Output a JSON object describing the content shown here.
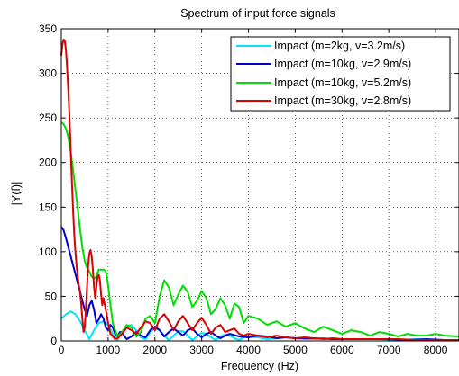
{
  "chart_data": {
    "type": "line",
    "title": "Spectrum of input force signals",
    "xlabel": "Frequency (Hz)",
    "ylabel": "|Y(f)|",
    "xlim": [
      0,
      8500
    ],
    "ylim": [
      0,
      350
    ],
    "xticks": [
      0,
      1000,
      2000,
      3000,
      4000,
      5000,
      6000,
      7000,
      8000
    ],
    "yticks": [
      0,
      50,
      100,
      150,
      200,
      250,
      300,
      350
    ],
    "grid": true,
    "legend_position": "top-right",
    "series": [
      {
        "name": "Impact (m=2kg, v=3.2m/s)",
        "color": "#00e5ff",
        "x": [
          0,
          100,
          200,
          300,
          400,
          500,
          600,
          700,
          800,
          900,
          1000,
          1100,
          1200,
          1300,
          1400,
          1500,
          1600,
          1700,
          1800,
          1900,
          2000,
          2100,
          2200,
          2300,
          2400,
          2500,
          2600,
          2700,
          2800,
          2900,
          3000,
          3100,
          3200,
          3300,
          3400,
          3500,
          3600,
          3700,
          3800,
          3900,
          4000,
          4200,
          4400,
          4600,
          4800,
          5000,
          5200,
          5400,
          5600,
          5800,
          6000,
          6400,
          6800,
          7200,
          7600,
          8000,
          8500
        ],
        "y": [
          25,
          30,
          33,
          30,
          22,
          12,
          2,
          12,
          20,
          22,
          18,
          8,
          1,
          10,
          17,
          18,
          12,
          4,
          2,
          10,
          14,
          12,
          6,
          1,
          6,
          11,
          11,
          6,
          1,
          5,
          9,
          8,
          4,
          1,
          5,
          7,
          6,
          3,
          1,
          4,
          5,
          4,
          2,
          3,
          4,
          3,
          2,
          2,
          3,
          2,
          2,
          2,
          2,
          1,
          2,
          1,
          1
        ]
      },
      {
        "name": "Impact (m=10kg, v=2.9m/s)",
        "color": "#0000cc",
        "x": [
          0,
          50,
          100,
          150,
          200,
          250,
          300,
          350,
          400,
          450,
          500,
          550,
          600,
          650,
          700,
          750,
          800,
          850,
          900,
          950,
          1000,
          1050,
          1100,
          1150,
          1200,
          1250,
          1300,
          1350,
          1400,
          1500,
          1600,
          1700,
          1800,
          1900,
          2000,
          2100,
          2200,
          2300,
          2400,
          2500,
          2600,
          2700,
          2800,
          2900,
          3000,
          3100,
          3200,
          3300,
          3400,
          3500,
          3600,
          3800,
          4000,
          4200,
          4400,
          4600,
          4800,
          5000,
          5400,
          5800,
          6200,
          6600,
          7000,
          7400,
          7800,
          8200,
          8500
        ],
        "y": [
          128,
          124,
          115,
          105,
          95,
          85,
          75,
          65,
          55,
          45,
          35,
          28,
          40,
          45,
          35,
          20,
          24,
          30,
          25,
          15,
          12,
          18,
          15,
          8,
          5,
          10,
          10,
          5,
          2,
          5,
          10,
          6,
          4,
          12,
          16,
          12,
          5,
          10,
          14,
          10,
          6,
          12,
          14,
          8,
          4,
          8,
          10,
          6,
          3,
          6,
          8,
          5,
          4,
          6,
          5,
          3,
          4,
          3,
          3,
          2,
          2,
          2,
          2,
          1,
          2,
          1,
          1
        ]
      },
      {
        "name": "Impact (m=10kg, v=5.2m/s)",
        "color": "#00dd00",
        "x": [
          0,
          50,
          100,
          150,
          200,
          250,
          300,
          350,
          400,
          450,
          500,
          550,
          600,
          650,
          700,
          750,
          800,
          850,
          900,
          950,
          1000,
          1050,
          1100,
          1150,
          1200,
          1300,
          1400,
          1500,
          1600,
          1700,
          1800,
          1900,
          2000,
          2100,
          2200,
          2300,
          2400,
          2500,
          2600,
          2700,
          2800,
          2900,
          3000,
          3100,
          3200,
          3300,
          3400,
          3500,
          3600,
          3700,
          3800,
          3900,
          4000,
          4200,
          4400,
          4600,
          4800,
          5000,
          5200,
          5400,
          5600,
          5800,
          6000,
          6200,
          6400,
          6600,
          6800,
          7000,
          7200,
          7400,
          7600,
          7800,
          8000,
          8200,
          8500
        ],
        "y": [
          245,
          243,
          238,
          228,
          212,
          192,
          170,
          148,
          125,
          105,
          90,
          82,
          78,
          72,
          70,
          72,
          80,
          80,
          80,
          78,
          62,
          40,
          20,
          12,
          5,
          10,
          18,
          15,
          5,
          10,
          25,
          28,
          20,
          50,
          68,
          60,
          40,
          52,
          62,
          55,
          38,
          45,
          56,
          48,
          30,
          36,
          48,
          40,
          25,
          42,
          38,
          20,
          28,
          25,
          18,
          22,
          16,
          20,
          14,
          10,
          16,
          12,
          8,
          12,
          10,
          6,
          10,
          8,
          5,
          8,
          6,
          6,
          8,
          6,
          5
        ]
      },
      {
        "name": "Impact (m=30kg, v=2.8m/s)",
        "color": "#dd0000",
        "x": [
          0,
          25,
          50,
          75,
          100,
          125,
          150,
          175,
          200,
          225,
          250,
          275,
          300,
          325,
          350,
          375,
          400,
          425,
          450,
          475,
          500,
          525,
          550,
          575,
          600,
          625,
          650,
          675,
          700,
          725,
          750,
          775,
          800,
          825,
          850,
          875,
          900,
          950,
          1000,
          1050,
          1100,
          1150,
          1200,
          1300,
          1400,
          1500,
          1600,
          1700,
          1800,
          1900,
          2000,
          2100,
          2200,
          2300,
          2400,
          2500,
          2600,
          2700,
          2800,
          2900,
          3000,
          3100,
          3200,
          3300,
          3400,
          3500,
          3600,
          3700,
          3800,
          3900,
          4000,
          4200,
          4400,
          4600,
          4800,
          5000,
          5200,
          5400,
          5600,
          5800,
          6000,
          6400,
          6800,
          7200,
          7600,
          8000,
          8500
        ],
        "y": [
          320,
          333,
          338,
          336,
          325,
          305,
          280,
          250,
          215,
          180,
          148,
          120,
          100,
          85,
          72,
          62,
          55,
          42,
          25,
          10,
          15,
          35,
          60,
          85,
          98,
          102,
          95,
          80,
          60,
          48,
          60,
          72,
          74,
          68,
          52,
          40,
          48,
          35,
          20,
          8,
          5,
          2,
          3,
          8,
          15,
          12,
          8,
          15,
          22,
          20,
          12,
          25,
          30,
          22,
          12,
          22,
          28,
          20,
          12,
          20,
          26,
          18,
          8,
          15,
          18,
          10,
          12,
          14,
          8,
          6,
          8,
          6,
          4,
          6,
          4,
          3,
          4,
          3,
          2,
          3,
          2,
          2,
          2,
          2,
          1,
          1,
          1
        ]
      }
    ]
  }
}
